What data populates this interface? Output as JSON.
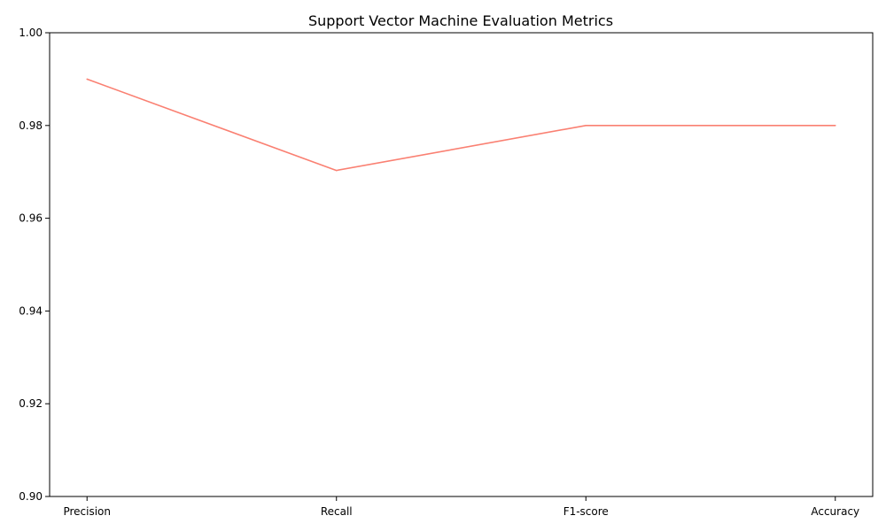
{
  "chart_data": {
    "type": "line",
    "title": "Support Vector Machine Evaluation Metrics",
    "xlabel": "",
    "ylabel": "",
    "categories": [
      "Precision",
      "Recall",
      "F1-score",
      "Accuracy"
    ],
    "series": [
      {
        "values": [
          0.99,
          0.9703,
          0.98,
          0.98
        ],
        "color": "#fa8072"
      }
    ],
    "ylim": [
      0.9,
      1.0
    ],
    "yticks": [
      0.9,
      0.92,
      0.94,
      0.96,
      0.98,
      1.0
    ],
    "ytick_labels": [
      "0.90",
      "0.92",
      "0.94",
      "0.96",
      "0.98",
      "1.00"
    ],
    "grid": false,
    "legend": "none"
  }
}
